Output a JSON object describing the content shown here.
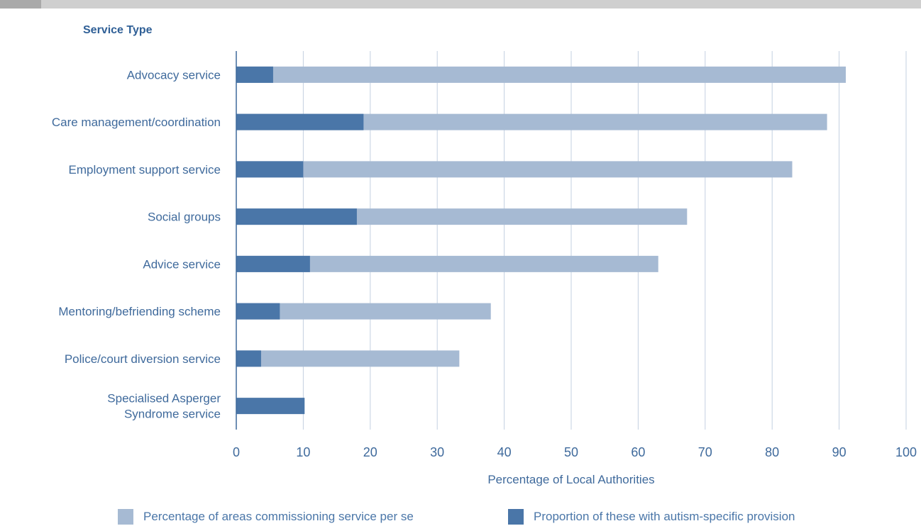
{
  "chart_data": {
    "type": "bar",
    "orientation": "horizontal",
    "stacked": false,
    "overlay": true,
    "y_title": "Service Type",
    "xlabel": "Percentage of Local Authorities",
    "xlim": [
      0,
      100
    ],
    "xticks": [
      0,
      10,
      20,
      30,
      40,
      50,
      60,
      70,
      80,
      90,
      100
    ],
    "grid": "vertical",
    "categories": [
      [
        "Advocacy service"
      ],
      [
        "Care management/coordination"
      ],
      [
        "Employment support service"
      ],
      [
        "Social groups"
      ],
      [
        "Advice service"
      ],
      [
        "Mentoring/befriending scheme"
      ],
      [
        "Police/court diversion service"
      ],
      [
        "Specialised Asperger",
        "Syndrome service"
      ]
    ],
    "series": [
      {
        "name": "Percentage of areas commissioning service per se",
        "color": "#a6bad3",
        "values": [
          91,
          88.2,
          83,
          67.3,
          63,
          38,
          33.3,
          null
        ]
      },
      {
        "name": "Proportion of these with autism-specific provision",
        "color": "#4a76a8",
        "values": [
          5.5,
          19,
          10,
          18,
          11,
          6.5,
          3.7,
          10.2
        ]
      }
    ],
    "legend_position": "bottom"
  }
}
